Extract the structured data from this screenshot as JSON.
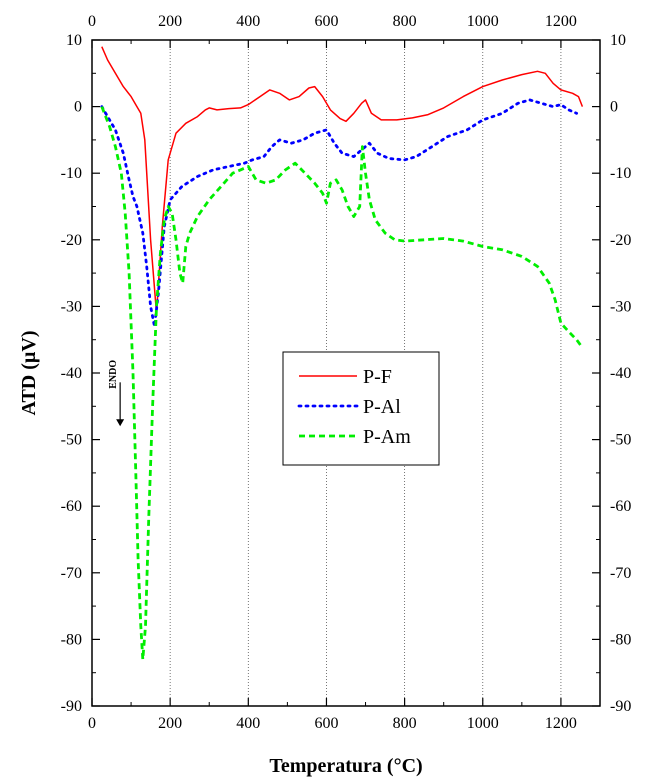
{
  "chart_data": {
    "type": "line",
    "title": "",
    "xlabel": "Temperatura (°C)",
    "ylabel": "ATD (µV)",
    "xlim": [
      0,
      1300
    ],
    "ylim": [
      -90,
      10
    ],
    "x_ticks": [
      0,
      200,
      400,
      600,
      800,
      1000,
      1200
    ],
    "y_ticks": [
      10,
      0,
      -10,
      -20,
      -30,
      -40,
      -50,
      -60,
      -70,
      -80,
      -90
    ],
    "x_tick_labels": [
      "0",
      "200",
      "400",
      "600",
      "800",
      "1000",
      "1200"
    ],
    "y_tick_labels": [
      "10",
      "0",
      "-10",
      "-20",
      "-30",
      "-40",
      "-50",
      "-60",
      "-70",
      "-80",
      "-90"
    ],
    "vertical_grid": [
      200,
      400,
      600,
      800,
      1000,
      1200
    ],
    "annotation": {
      "text": "ENDO",
      "x": 72,
      "y": -40.5,
      "arrow_to_y": -48
    },
    "legend": {
      "placement": "center"
    },
    "series": [
      {
        "name": "P-F",
        "color": "#ff0000",
        "style": "solid",
        "points": [
          [
            25,
            9
          ],
          [
            40,
            7
          ],
          [
            60,
            5
          ],
          [
            80,
            3
          ],
          [
            100,
            1.5
          ],
          [
            115,
            0
          ],
          [
            125,
            -1
          ],
          [
            135,
            -5
          ],
          [
            150,
            -20
          ],
          [
            165,
            -31
          ],
          [
            180,
            -18
          ],
          [
            195,
            -8
          ],
          [
            215,
            -4
          ],
          [
            240,
            -2.5
          ],
          [
            270,
            -1.5
          ],
          [
            290,
            -0.5
          ],
          [
            300,
            -0.2
          ],
          [
            320,
            -0.5
          ],
          [
            350,
            -0.3
          ],
          [
            380,
            -0.2
          ],
          [
            400,
            0.3
          ],
          [
            430,
            1.5
          ],
          [
            455,
            2.5
          ],
          [
            480,
            2
          ],
          [
            505,
            1
          ],
          [
            530,
            1.5
          ],
          [
            555,
            2.8
          ],
          [
            570,
            3
          ],
          [
            590,
            1.5
          ],
          [
            610,
            -0.5
          ],
          [
            635,
            -1.8
          ],
          [
            650,
            -2.2
          ],
          [
            670,
            -1
          ],
          [
            690,
            0.5
          ],
          [
            700,
            1
          ],
          [
            715,
            -1
          ],
          [
            740,
            -2
          ],
          [
            780,
            -2
          ],
          [
            820,
            -1.7
          ],
          [
            860,
            -1.2
          ],
          [
            900,
            -0.2
          ],
          [
            950,
            1.5
          ],
          [
            1000,
            3
          ],
          [
            1050,
            4
          ],
          [
            1100,
            4.8
          ],
          [
            1140,
            5.3
          ],
          [
            1160,
            5
          ],
          [
            1180,
            3.5
          ],
          [
            1200,
            2.5
          ],
          [
            1230,
            2
          ],
          [
            1245,
            1.5
          ],
          [
            1255,
            0
          ]
        ]
      },
      {
        "name": "P-Al",
        "color": "#0000ff",
        "style": "dotted",
        "points": [
          [
            25,
            0
          ],
          [
            40,
            -1.5
          ],
          [
            60,
            -3.5
          ],
          [
            80,
            -7
          ],
          [
            95,
            -11
          ],
          [
            105,
            -13.5
          ],
          [
            115,
            -15
          ],
          [
            130,
            -19
          ],
          [
            140,
            -24
          ],
          [
            150,
            -30
          ],
          [
            160,
            -33
          ],
          [
            170,
            -28
          ],
          [
            185,
            -18
          ],
          [
            200,
            -14
          ],
          [
            230,
            -12
          ],
          [
            270,
            -10.5
          ],
          [
            310,
            -9.5
          ],
          [
            350,
            -9
          ],
          [
            390,
            -8.5
          ],
          [
            410,
            -8
          ],
          [
            440,
            -7.5
          ],
          [
            460,
            -6
          ],
          [
            480,
            -5
          ],
          [
            510,
            -5.5
          ],
          [
            540,
            -5
          ],
          [
            570,
            -4
          ],
          [
            600,
            -3.5
          ],
          [
            620,
            -5.5
          ],
          [
            640,
            -7
          ],
          [
            670,
            -7.5
          ],
          [
            690,
            -6.5
          ],
          [
            710,
            -5.5
          ],
          [
            730,
            -7
          ],
          [
            760,
            -7.8
          ],
          [
            800,
            -8
          ],
          [
            830,
            -7.5
          ],
          [
            870,
            -6
          ],
          [
            910,
            -4.5
          ],
          [
            960,
            -3.5
          ],
          [
            1000,
            -2
          ],
          [
            1050,
            -1
          ],
          [
            1090,
            0.5
          ],
          [
            1120,
            1
          ],
          [
            1150,
            0.5
          ],
          [
            1180,
            0
          ],
          [
            1200,
            0.3
          ],
          [
            1220,
            -0.5
          ],
          [
            1240,
            -1
          ]
        ]
      },
      {
        "name": "P-Am",
        "color": "#00ee00",
        "style": "dashed",
        "points": [
          [
            25,
            0
          ],
          [
            45,
            -3
          ],
          [
            60,
            -6
          ],
          [
            75,
            -10
          ],
          [
            85,
            -16
          ],
          [
            95,
            -25
          ],
          [
            105,
            -40
          ],
          [
            112,
            -55
          ],
          [
            118,
            -68
          ],
          [
            125,
            -78
          ],
          [
            130,
            -83
          ],
          [
            137,
            -78
          ],
          [
            145,
            -62
          ],
          [
            155,
            -45
          ],
          [
            165,
            -30
          ],
          [
            175,
            -22
          ],
          [
            185,
            -17
          ],
          [
            195,
            -15
          ],
          [
            205,
            -16
          ],
          [
            215,
            -20
          ],
          [
            225,
            -25
          ],
          [
            232,
            -26.5
          ],
          [
            240,
            -21
          ],
          [
            250,
            -19
          ],
          [
            270,
            -16.5
          ],
          [
            300,
            -14
          ],
          [
            330,
            -12
          ],
          [
            360,
            -10
          ],
          [
            380,
            -9.5
          ],
          [
            400,
            -9
          ],
          [
            420,
            -11
          ],
          [
            445,
            -11.5
          ],
          [
            470,
            -11
          ],
          [
            495,
            -9.5
          ],
          [
            520,
            -8.5
          ],
          [
            545,
            -10
          ],
          [
            570,
            -11.5
          ],
          [
            590,
            -13
          ],
          [
            600,
            -14.5
          ],
          [
            610,
            -11.5
          ],
          [
            625,
            -11
          ],
          [
            640,
            -12.5
          ],
          [
            655,
            -15
          ],
          [
            670,
            -16.5
          ],
          [
            685,
            -15
          ],
          [
            692,
            -6
          ],
          [
            700,
            -10
          ],
          [
            710,
            -14
          ],
          [
            725,
            -17
          ],
          [
            750,
            -19
          ],
          [
            775,
            -20
          ],
          [
            800,
            -20.2
          ],
          [
            850,
            -20
          ],
          [
            900,
            -19.8
          ],
          [
            950,
            -20.2
          ],
          [
            1000,
            -21
          ],
          [
            1050,
            -21.5
          ],
          [
            1100,
            -22.5
          ],
          [
            1140,
            -24
          ],
          [
            1170,
            -26.5
          ],
          [
            1185,
            -29
          ],
          [
            1200,
            -32.5
          ],
          [
            1220,
            -33.8
          ],
          [
            1240,
            -35
          ],
          [
            1250,
            -35.8
          ]
        ]
      }
    ]
  }
}
